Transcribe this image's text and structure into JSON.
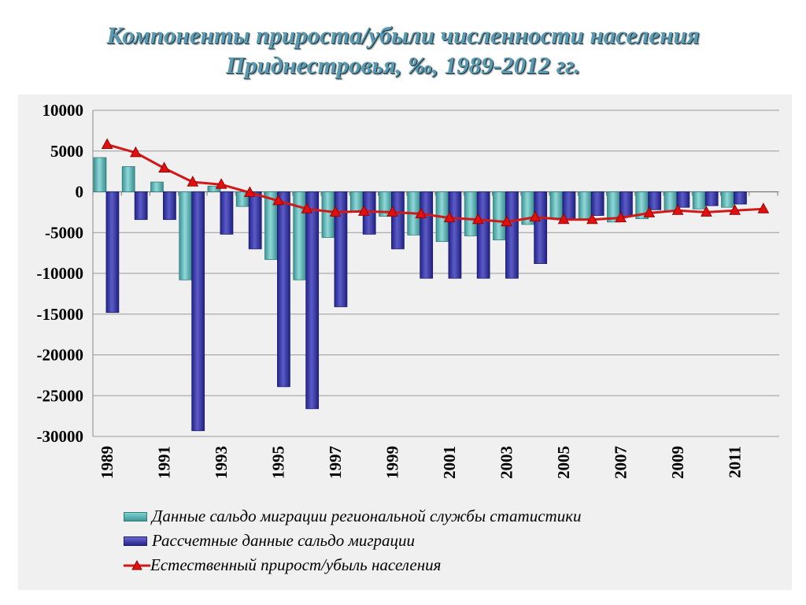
{
  "title": {
    "line1": "Компоненты прироста/убыли численности населения",
    "line2": "Приднестровья, ‰, 1989-2012 гг."
  },
  "colors": {
    "teal_series": "#4aa6a6",
    "blue_series": "#2e2e9e",
    "line_series": "#d01a1a",
    "grid": "#9a9a9a"
  },
  "chart_data": {
    "type": "bar",
    "title": "Компоненты прироста/убыли численности населения Приднестровья, ‰, 1989-2012 гг.",
    "categories": [
      "1989",
      "1990",
      "1991",
      "1992",
      "1993",
      "1994",
      "1995",
      "1996",
      "1997",
      "1998",
      "1999",
      "2000",
      "2001",
      "2002",
      "2003",
      "2004",
      "2005",
      "2006",
      "2007",
      "2008",
      "2009",
      "2010",
      "2011",
      "2012"
    ],
    "x_tick_labels": [
      "1989",
      "1991",
      "1993",
      "1995",
      "1997",
      "1999",
      "2001",
      "2003",
      "2005",
      "2007",
      "2009",
      "2011"
    ],
    "ylim": [
      -30000,
      10000
    ],
    "y_ticks": [
      10000,
      5000,
      0,
      -5000,
      -10000,
      -15000,
      -20000,
      -25000,
      -30000
    ],
    "grid": true,
    "legend_position": "bottom",
    "series": [
      {
        "name": "Данные сальдо миграции региональной службы статистики",
        "type": "bar",
        "values": [
          4200,
          3100,
          1200,
          -10800,
          700,
          -1800,
          -8300,
          -10800,
          -5600,
          -2400,
          -3000,
          -5300,
          -6100,
          -5400,
          -5900,
          -4000,
          -3200,
          -3300,
          -3700,
          -3300,
          -2400,
          -2100,
          -1900,
          null
        ]
      },
      {
        "name": "Рассчетные данные сальдо миграции",
        "type": "bar",
        "values": [
          -14800,
          -3400,
          -3400,
          -29300,
          -5200,
          -7000,
          -23900,
          -26600,
          -14100,
          -5200,
          -7000,
          -10600,
          -10600,
          -10600,
          -10600,
          -8800,
          -3300,
          -2900,
          -3000,
          -2200,
          -1900,
          -1700,
          -1500,
          null
        ]
      },
      {
        "name": "Естественный прирост/убыль населения",
        "type": "line",
        "values": [
          5800,
          4800,
          2900,
          1200,
          900,
          -100,
          -1100,
          -2100,
          -2500,
          -2400,
          -2500,
          -2700,
          -3200,
          -3400,
          -3700,
          -3100,
          -3400,
          -3400,
          -3200,
          -2600,
          -2300,
          -2500,
          -2300,
          -2100
        ]
      }
    ]
  }
}
